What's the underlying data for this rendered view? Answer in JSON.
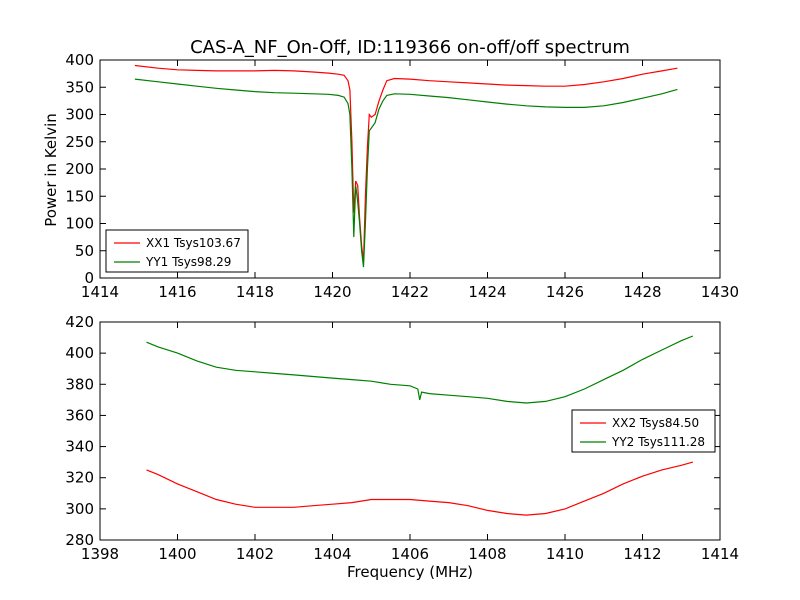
{
  "chart_data": [
    {
      "type": "line",
      "title": "CAS-A_NF_On-Off, ID:119366 on-off/off spectrum",
      "xlabel": "",
      "ylabel": "Power in Kelvin",
      "xlim": [
        1414,
        1430
      ],
      "ylim": [
        0,
        400
      ],
      "xticks": [
        "1414",
        "1416",
        "1418",
        "1420",
        "1422",
        "1424",
        "1426",
        "1428",
        "1430"
      ],
      "yticks": [
        "0",
        "50",
        "100",
        "150",
        "200",
        "250",
        "300",
        "350",
        "400"
      ],
      "grid": false,
      "legend_position": "lower-left",
      "series": [
        {
          "name": "XX1 Tsys103.67",
          "color": "#ff0000",
          "x": [
            1414.9,
            1415.5,
            1416.0,
            1416.5,
            1417.0,
            1417.5,
            1418.0,
            1418.5,
            1419.0,
            1419.5,
            1419.9,
            1420.15,
            1420.3,
            1420.4,
            1420.45,
            1420.5,
            1420.55,
            1420.6,
            1420.65,
            1420.7,
            1420.75,
            1420.8,
            1420.85,
            1420.9,
            1420.95,
            1421.0,
            1421.1,
            1421.2,
            1421.3,
            1421.4,
            1421.6,
            1422.0,
            1422.5,
            1423.0,
            1423.5,
            1424.0,
            1424.5,
            1425.0,
            1425.5,
            1426.0,
            1426.5,
            1427.0,
            1427.5,
            1428.0,
            1428.5,
            1428.9
          ],
          "y": [
            390,
            385,
            382,
            381,
            380,
            380,
            380,
            381,
            380,
            378,
            376,
            374,
            372,
            362,
            345,
            250,
            120,
            178,
            170,
            110,
            60,
            30,
            150,
            240,
            300,
            295,
            300,
            325,
            345,
            362,
            366,
            365,
            362,
            360,
            358,
            356,
            354,
            353,
            352,
            352,
            355,
            360,
            366,
            374,
            380,
            385
          ]
        },
        {
          "name": "YY1 Tsys98.29",
          "color": "#008000",
          "x": [
            1414.9,
            1415.5,
            1416.0,
            1416.5,
            1417.0,
            1417.5,
            1418.0,
            1418.5,
            1419.0,
            1419.5,
            1419.9,
            1420.15,
            1420.3,
            1420.4,
            1420.45,
            1420.5,
            1420.55,
            1420.6,
            1420.65,
            1420.7,
            1420.75,
            1420.8,
            1420.85,
            1420.9,
            1420.95,
            1421.0,
            1421.1,
            1421.2,
            1421.3,
            1421.4,
            1421.6,
            1422.0,
            1422.5,
            1423.0,
            1423.5,
            1424.0,
            1424.5,
            1425.0,
            1425.5,
            1426.0,
            1426.5,
            1427.0,
            1427.5,
            1428.0,
            1428.5,
            1428.9
          ],
          "y": [
            365,
            360,
            356,
            352,
            348,
            345,
            342,
            340,
            339,
            338,
            337,
            335,
            332,
            320,
            300,
            200,
            75,
            170,
            140,
            100,
            50,
            20,
            100,
            200,
            270,
            275,
            285,
            310,
            325,
            335,
            338,
            337,
            334,
            331,
            327,
            323,
            319,
            316,
            314,
            313,
            313,
            316,
            322,
            330,
            338,
            346
          ]
        }
      ]
    },
    {
      "type": "line",
      "title": "",
      "xlabel": "Frequency (MHz)",
      "ylabel": "",
      "xlim": [
        1398,
        1414
      ],
      "ylim": [
        280,
        420
      ],
      "xticks": [
        "1398",
        "1400",
        "1402",
        "1404",
        "1406",
        "1408",
        "1410",
        "1412",
        "1414"
      ],
      "yticks": [
        "280",
        "300",
        "320",
        "340",
        "360",
        "380",
        "400",
        "420"
      ],
      "grid": false,
      "legend_position": "center-right",
      "series": [
        {
          "name": "XX2 Tsys84.50",
          "color": "#ff0000",
          "x": [
            1399.2,
            1399.5,
            1400.0,
            1400.5,
            1401.0,
            1401.5,
            1402.0,
            1402.5,
            1403.0,
            1403.5,
            1404.0,
            1404.5,
            1405.0,
            1405.5,
            1406.0,
            1406.5,
            1407.0,
            1407.5,
            1408.0,
            1408.5,
            1409.0,
            1409.5,
            1410.0,
            1410.5,
            1411.0,
            1411.5,
            1412.0,
            1412.5,
            1413.0,
            1413.3
          ],
          "y": [
            325,
            322,
            316,
            311,
            306,
            303,
            301,
            301,
            301,
            302,
            303,
            304,
            306,
            306,
            306,
            305,
            304,
            302,
            299,
            297,
            296,
            297,
            300,
            305,
            310,
            316,
            321,
            325,
            328,
            330
          ]
        },
        {
          "name": "YY2 Tsys111.28",
          "color": "#008000",
          "x": [
            1399.2,
            1399.5,
            1400.0,
            1400.5,
            1401.0,
            1401.5,
            1402.0,
            1402.5,
            1403.0,
            1403.5,
            1404.0,
            1404.5,
            1405.0,
            1405.5,
            1406.0,
            1406.2,
            1406.25,
            1406.3,
            1406.5,
            1407.0,
            1407.5,
            1408.0,
            1408.5,
            1409.0,
            1409.5,
            1410.0,
            1410.5,
            1411.0,
            1411.5,
            1412.0,
            1412.5,
            1413.0,
            1413.3
          ],
          "y": [
            407,
            404,
            400,
            395,
            391,
            389,
            388,
            387,
            386,
            385,
            384,
            383,
            382,
            380,
            379,
            377,
            370,
            375,
            374,
            373,
            372,
            371,
            369,
            368,
            369,
            372,
            377,
            383,
            389,
            396,
            402,
            408,
            411
          ]
        }
      ]
    }
  ]
}
